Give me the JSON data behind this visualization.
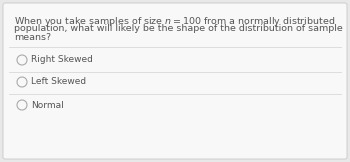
{
  "question_lines": [
    "When you take samples of size $n = 100$ from a normally distributed",
    "population, what will likely be the shape of the distribution of sample",
    "means?"
  ],
  "options": [
    "Right Skewed",
    "Left Skewed",
    "Normal"
  ],
  "bg_color": "#e8e8e8",
  "box_color": "#f8f8f8",
  "border_color": "#c8c8c8",
  "text_color": "#555555",
  "radio_color": "#aaaaaa",
  "divider_color": "#d8d8d8",
  "question_fontsize": 6.8,
  "option_fontsize": 6.5
}
